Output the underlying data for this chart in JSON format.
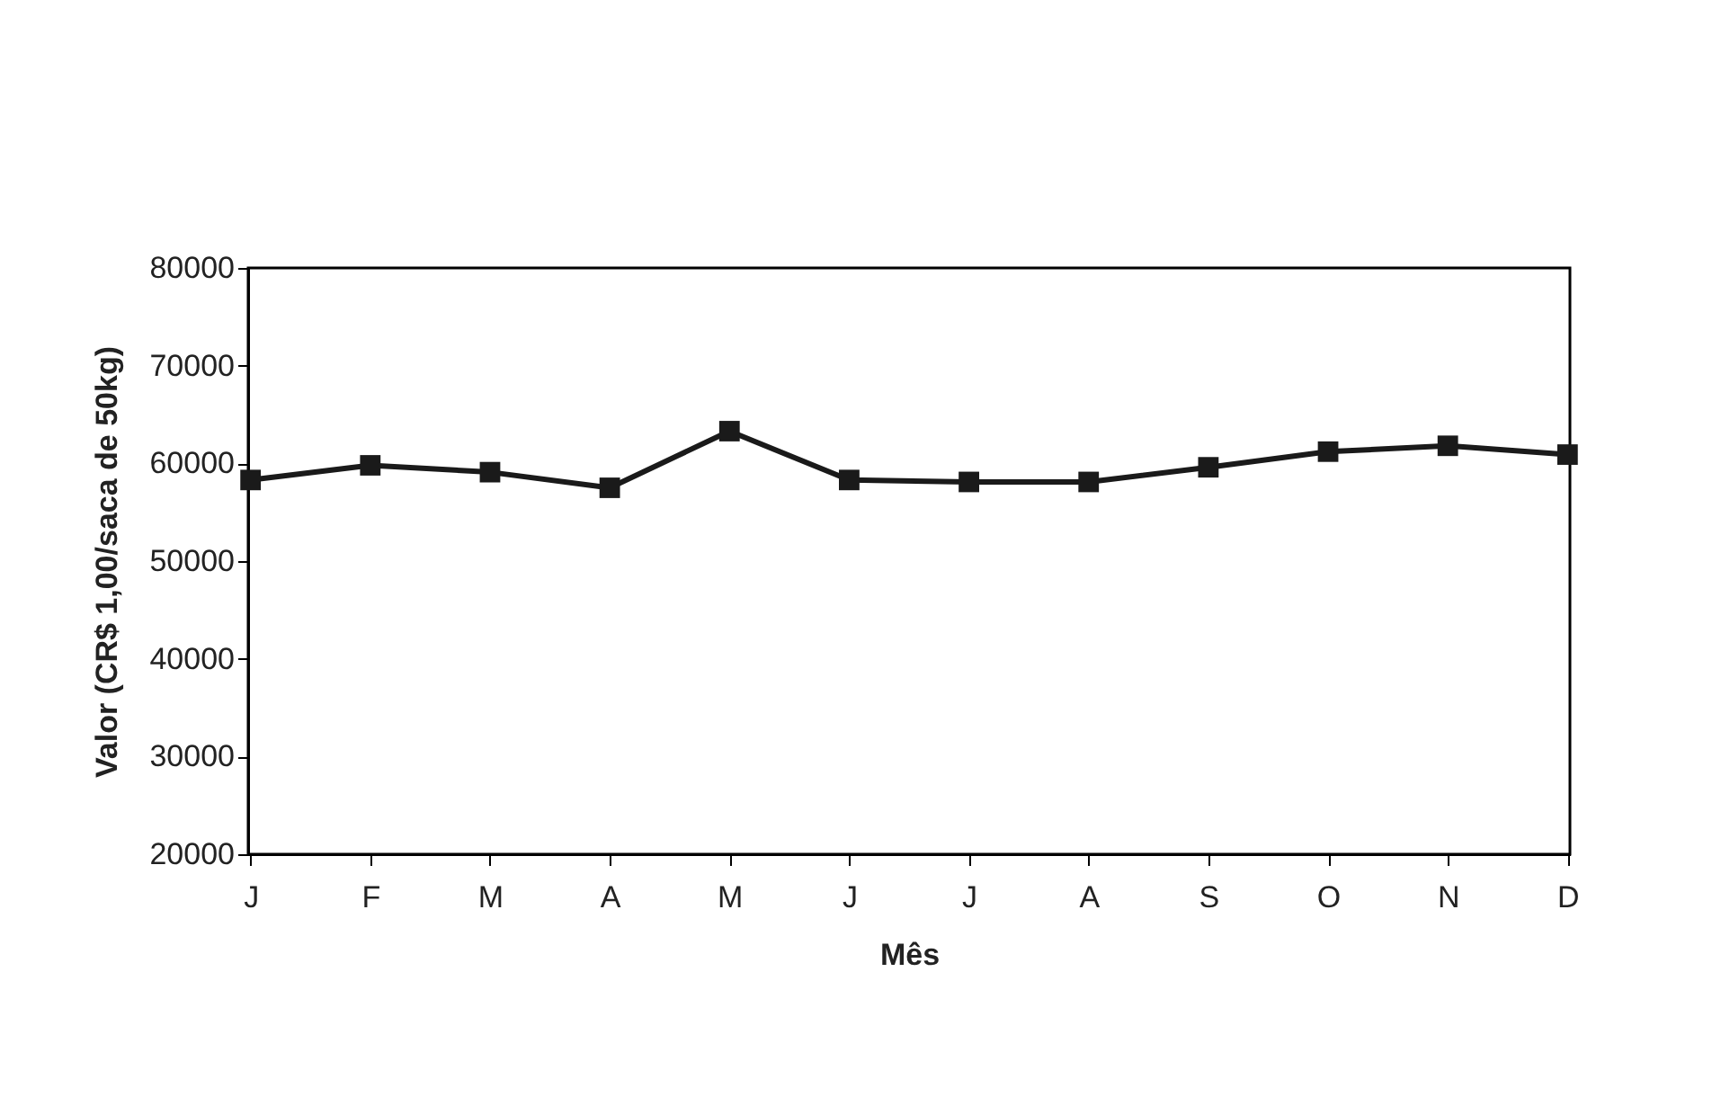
{
  "chart_data": {
    "type": "line",
    "xlabel": "Mês",
    "ylabel": "Valor (CR$ 1,00/saca de 50kg)",
    "categories": [
      "J",
      "F",
      "M",
      "A",
      "M",
      "J",
      "J",
      "A",
      "S",
      "O",
      "N",
      "D"
    ],
    "values": [
      58300,
      59800,
      59100,
      57500,
      63300,
      58300,
      58100,
      58100,
      59600,
      61200,
      61800,
      60900
    ],
    "color": "#1a1a1a",
    "ylim": [
      20000,
      80000
    ],
    "yticks": [
      20000,
      30000,
      40000,
      50000,
      60000,
      70000,
      80000
    ],
    "marker": "square",
    "line_style": "solid"
  }
}
